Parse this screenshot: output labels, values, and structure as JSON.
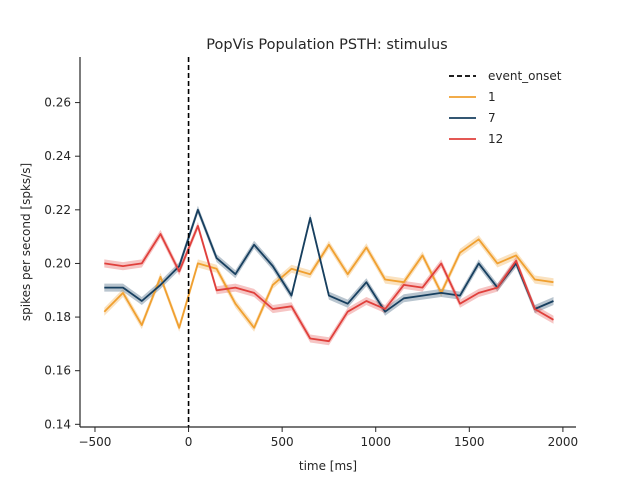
{
  "chart_data": {
    "type": "line",
    "title": "PopVis Population PSTH: stimulus",
    "xlabel": "time [ms]",
    "ylabel": "spikes per second [spks/s]",
    "xlim": [
      -580,
      2070
    ],
    "ylim": [
      0.139,
      0.277
    ],
    "xticks": [
      -500,
      0,
      500,
      1000,
      1500,
      2000
    ],
    "yticks": [
      0.14,
      0.16,
      0.18,
      0.2,
      0.22,
      0.24,
      0.26
    ],
    "xtick_labels": [
      "−500",
      "0",
      "500",
      "1000",
      "1500",
      "2000"
    ],
    "ytick_labels": [
      "0.14",
      "0.16",
      "0.18",
      "0.20",
      "0.22",
      "0.24",
      "0.26"
    ],
    "x": [
      -450,
      -350,
      -250,
      -150,
      -50,
      50,
      150,
      250,
      350,
      450,
      550,
      650,
      750,
      850,
      950,
      1050,
      1150,
      1250,
      1350,
      1450,
      1550,
      1650,
      1750,
      1850,
      1950
    ],
    "event_onset": {
      "name": "event_onset",
      "x": 0,
      "color": "#000000"
    },
    "legend_position": "top-right",
    "band_halfwidth": 0.0015,
    "series": [
      {
        "name": "1",
        "color": "#f0a030",
        "values": [
          0.182,
          0.189,
          0.177,
          0.195,
          0.176,
          0.2,
          0.198,
          0.185,
          0.176,
          0.192,
          0.198,
          0.196,
          0.207,
          0.196,
          0.206,
          0.194,
          0.193,
          0.203,
          0.189,
          0.204,
          0.209,
          0.2,
          0.203,
          0.194,
          0.193
        ]
      },
      {
        "name": "7",
        "color": "#173f5f",
        "values": [
          0.191,
          0.191,
          0.186,
          0.192,
          0.199,
          0.22,
          0.202,
          0.196,
          0.207,
          0.199,
          0.188,
          0.217,
          0.188,
          0.185,
          0.193,
          0.182,
          0.187,
          0.188,
          0.189,
          0.188,
          0.2,
          0.191,
          0.2,
          0.183,
          0.186
        ]
      },
      {
        "name": "12",
        "color": "#e0403c",
        "values": [
          0.2,
          0.199,
          0.2,
          0.211,
          0.197,
          0.214,
          0.19,
          0.191,
          0.189,
          0.183,
          0.184,
          0.172,
          0.171,
          0.182,
          0.186,
          0.183,
          0.192,
          0.191,
          0.2,
          0.185,
          0.189,
          0.191,
          0.201,
          0.183,
          0.179
        ]
      }
    ]
  }
}
